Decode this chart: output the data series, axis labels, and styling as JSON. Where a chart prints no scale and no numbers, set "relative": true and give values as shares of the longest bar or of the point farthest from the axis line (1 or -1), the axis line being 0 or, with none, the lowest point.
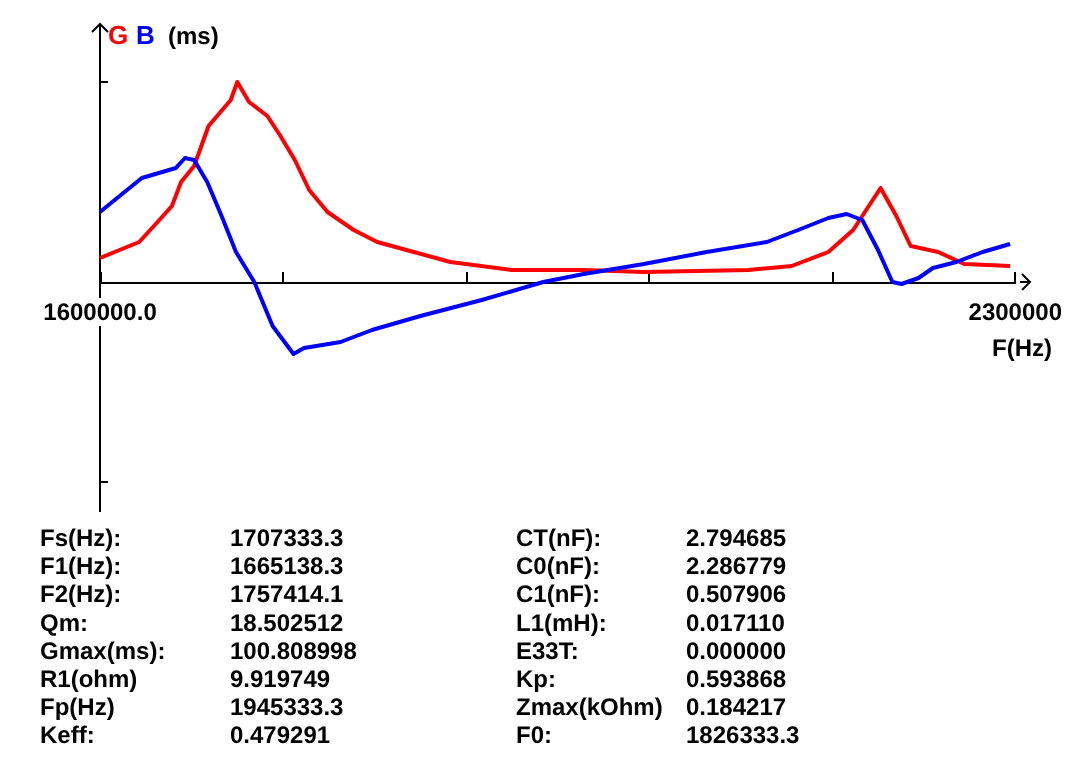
{
  "chart_data": {
    "type": "line",
    "relative": true,
    "xlabel": "F(Hz)",
    "ylabel": "(ms)",
    "xlim": [
      1600000,
      2300000
    ],
    "xticks": [
      {
        "value": 1600000,
        "label": "1600000.0"
      },
      {
        "value": 1740000,
        "label": null
      },
      {
        "value": 1880000,
        "label": null
      },
      {
        "value": 2020000,
        "label": null
      },
      {
        "value": 2160000,
        "label": null
      },
      2300000
    ],
    "series": [
      {
        "name": "G",
        "color": "#ff0000",
        "x": [
          1600000,
          1615000,
          1630000,
          1644000,
          1655000,
          1662000,
          1672000,
          1683000,
          1700000,
          1705000,
          1714000,
          1728000,
          1738000,
          1749000,
          1760000,
          1774000,
          1794000,
          1812000,
          1840000,
          1868000,
          1915000,
          1970000,
          2016000,
          2096000,
          2129000,
          2157000,
          2176000,
          2197000,
          2209000,
          2220000,
          2241000,
          2261000,
          2296000
        ],
        "values": [
          0.12,
          0.16,
          0.2,
          0.3,
          0.38,
          0.5,
          0.58,
          0.78,
          0.91,
          1.0,
          0.9,
          0.83,
          0.73,
          0.61,
          0.46,
          0.35,
          0.26,
          0.2,
          0.15,
          0.1,
          0.06,
          0.06,
          0.05,
          0.06,
          0.08,
          0.15,
          0.26,
          0.47,
          0.33,
          0.18,
          0.15,
          0.09,
          0.08
        ]
      },
      {
        "name": "B",
        "color": "#0000ff",
        "x": [
          1600000,
          1615000,
          1632000,
          1658000,
          1665000,
          1672000,
          1682000,
          1693000,
          1704000,
          1718000,
          1732000,
          1748000,
          1756000,
          1784000,
          1808000,
          1845000,
          1892000,
          1939000,
          1970000,
          2016000,
          2064000,
          2110000,
          2134000,
          2157000,
          2171000,
          2183000,
          2195000,
          2206000,
          2213000,
          2226000,
          2237000,
          2255000,
          2275000,
          2296000
        ],
        "values": [
          0.35,
          0.43,
          0.52,
          0.57,
          0.62,
          0.61,
          0.5,
          0.33,
          0.15,
          0.0,
          -0.22,
          -0.36,
          -0.33,
          -0.3,
          -0.24,
          -0.17,
          -0.09,
          0.0,
          0.04,
          0.09,
          0.15,
          0.2,
          0.26,
          0.32,
          0.34,
          0.31,
          0.16,
          0.0,
          -0.01,
          0.02,
          0.07,
          0.1,
          0.15,
          0.19
        ]
      }
    ],
    "annotations": [
      "Fs(Hz):",
      "1707333.3",
      "CT(nF):",
      "2.794685",
      "F1(Hz):",
      "1665138.3",
      "C0(nF):",
      "2.286779",
      "F2(Hz):",
      "1757414.1",
      "C1(nF):",
      "0.507906",
      "Qm:",
      "18.502512",
      "L1(mH):",
      "0.017110",
      "Gmax(ms):",
      "100.808998",
      "E33T:",
      "0.000000",
      "R1(ohm)",
      "9.919749",
      "Kp:",
      "0.593868",
      "Fp(Hz)",
      "1945333.3",
      "Zmax(kOhm)",
      "0.184217",
      "Keff:",
      "0.479291",
      "F0:",
      "1826333.3"
    ]
  }
}
